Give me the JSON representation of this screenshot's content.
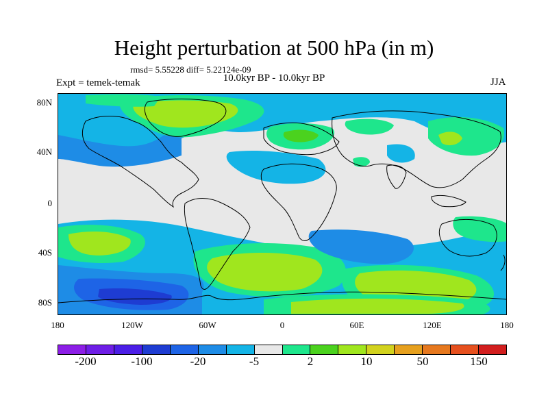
{
  "title": "Height perturbation at 500 hPa (in m)",
  "stats": "rmsd= 5.55228 diff= 5.22124e-09",
  "subtitle": "10.0kyr BP - 10.0kyr BP",
  "left_label": "Expt = temek-temak",
  "right_label": "JJA",
  "lat_ticks": [
    "80N",
    "40N",
    "0",
    "40S",
    "80S"
  ],
  "lon_ticks": [
    "180",
    "120W",
    "60W",
    "0",
    "60E",
    "120E",
    "180"
  ],
  "colorbar": {
    "colors": [
      "#8c1ee6",
      "#6e1ee6",
      "#4b1ee6",
      "#1e3cd2",
      "#1e64e6",
      "#1e8ce6",
      "#14b4e6",
      "#e8e8e8",
      "#1ee68c",
      "#4bd21e",
      "#a0e61e",
      "#d2d21e",
      "#e6a01e",
      "#e6781e",
      "#e6501e",
      "#d21e1e"
    ],
    "labels": [
      "-200",
      "-100",
      "-20",
      "-5",
      "2",
      "10",
      "50",
      "150"
    ]
  },
  "palette": {
    "background": "#e8e8e8",
    "light_blue": "#14b4e6",
    "mid_blue": "#1e8ce6",
    "blue": "#1e64e6",
    "dark_blue": "#1e3cd2",
    "teal_green": "#1ee68c",
    "green": "#4bd21e",
    "yellow_green": "#a0e61e",
    "coastline": "#000000"
  }
}
